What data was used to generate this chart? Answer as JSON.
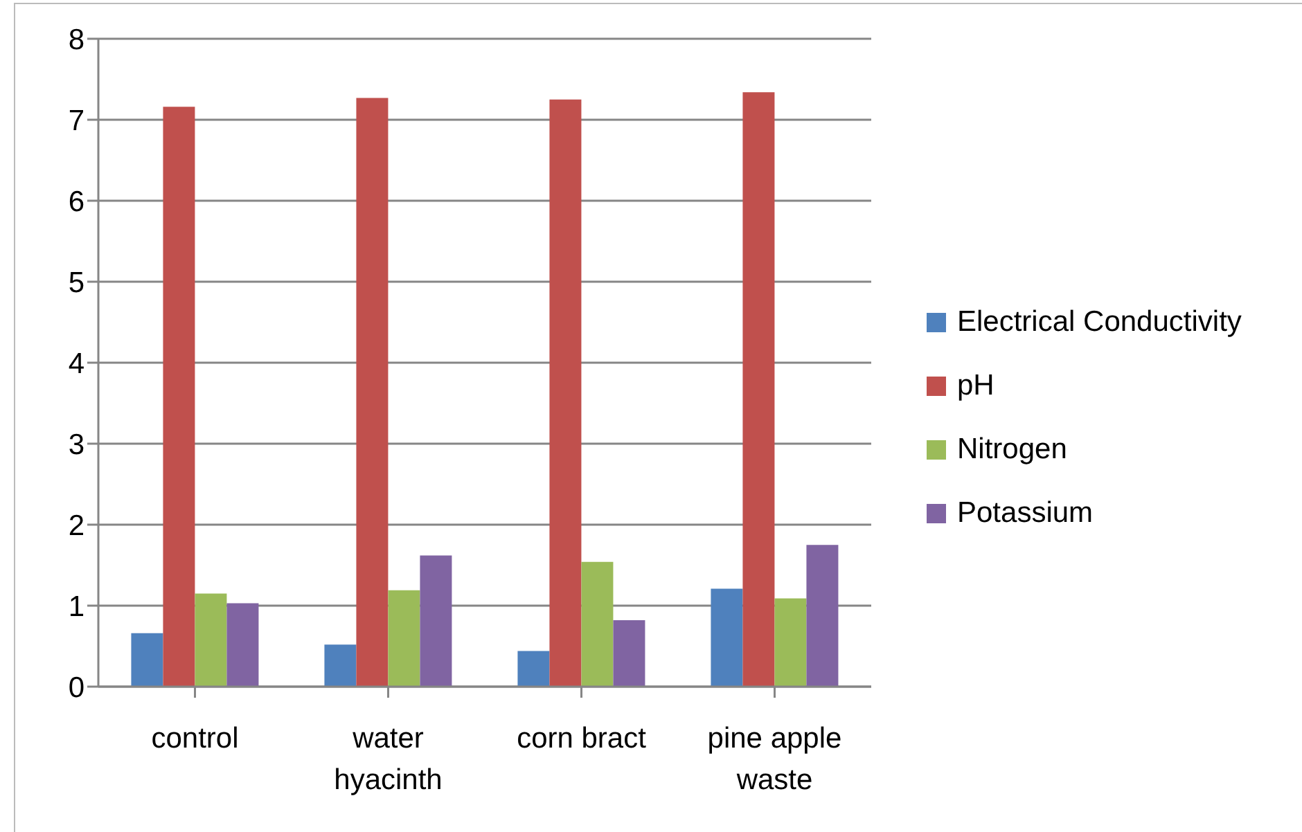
{
  "chart_data": {
    "type": "bar",
    "categories": [
      "control",
      "water hyacinth",
      "corn bract",
      "pine apple waste"
    ],
    "series": [
      {
        "name": "Electrical Conductivity",
        "color": "#4f81bd",
        "values": [
          0.66,
          0.52,
          0.44,
          1.21
        ]
      },
      {
        "name": "pH",
        "color": "#c0504d",
        "values": [
          7.16,
          7.27,
          7.25,
          7.34
        ]
      },
      {
        "name": "Nitrogen",
        "color": "#9bbb59",
        "values": [
          1.15,
          1.19,
          1.54,
          1.09
        ]
      },
      {
        "name": "Potassium",
        "color": "#8064a2",
        "values": [
          1.03,
          1.62,
          0.82,
          1.75
        ]
      }
    ],
    "ylim": [
      0,
      8
    ],
    "yticks": [
      0,
      1,
      2,
      3,
      4,
      5,
      6,
      7,
      8
    ],
    "grid": "y",
    "legend": "right"
  }
}
